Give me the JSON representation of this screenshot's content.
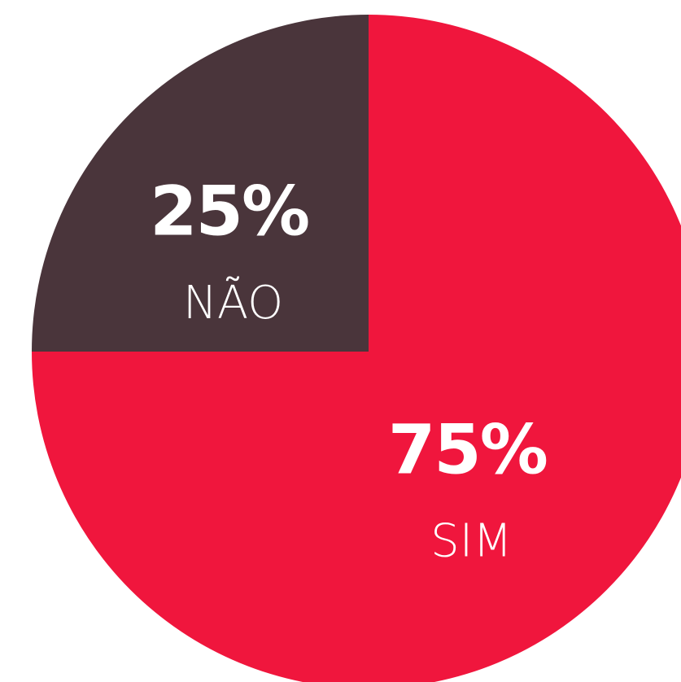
{
  "chart_data": {
    "type": "pie",
    "categories": [
      "SIM",
      "NÃO"
    ],
    "values": [
      75,
      25
    ],
    "value_labels": [
      "75%",
      "25%"
    ],
    "colors": [
      "#f0163d",
      "#4a353b"
    ]
  }
}
